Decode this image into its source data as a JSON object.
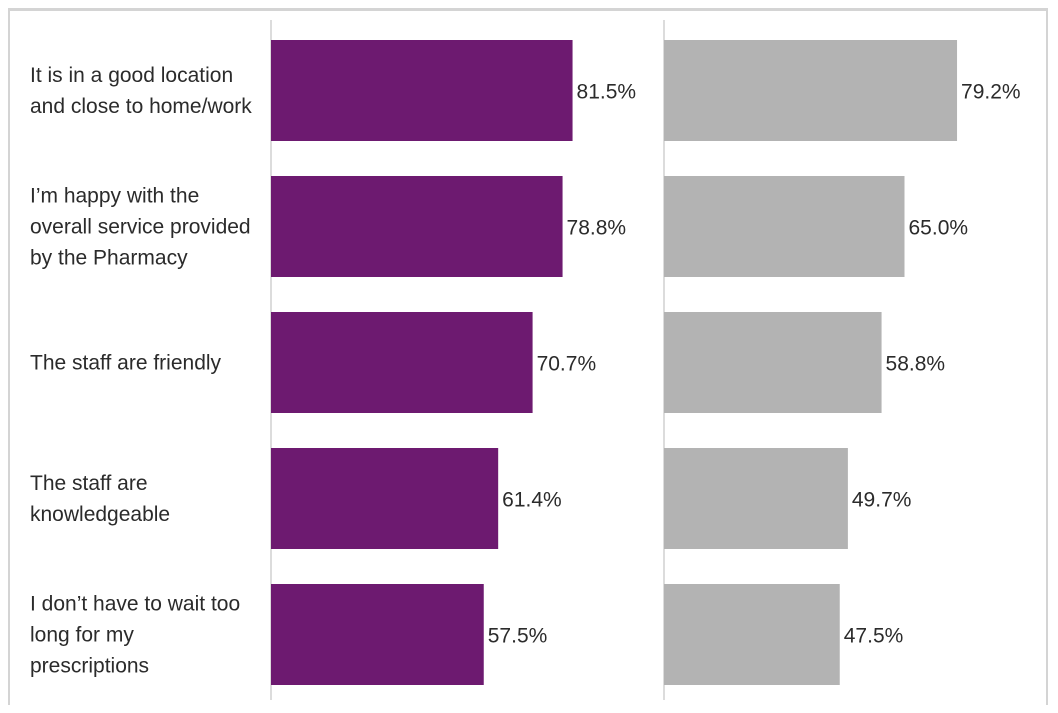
{
  "chart_data": {
    "type": "bar",
    "orientation": "horizontal",
    "panels": 2,
    "categories": [
      [
        "It is in a good location",
        "and close to home/work"
      ],
      [
        "I’m happy with the",
        "overall service provided",
        "by the Pharmacy"
      ],
      [
        "The staff are friendly"
      ],
      [
        "The staff are",
        "knowledgeable"
      ],
      [
        "I don’t have to wait too",
        "long for my",
        "prescriptions"
      ]
    ],
    "series": [
      {
        "values": [
          81.5,
          78.8,
          70.7,
          61.4,
          57.5
        ],
        "labels": [
          "81.5%",
          "78.8%",
          "70.7%",
          "61.4%",
          "57.5%"
        ],
        "color": "#6d1a70"
      },
      {
        "values": [
          79.2,
          65.0,
          58.8,
          49.7,
          47.5
        ],
        "labels": [
          "79.2%",
          "65.0%",
          "58.8%",
          "49.7%",
          "47.5%"
        ],
        "color": "#b3b3b3"
      }
    ],
    "xlim": [
      0,
      100
    ],
    "grid": false,
    "legend": "none"
  }
}
